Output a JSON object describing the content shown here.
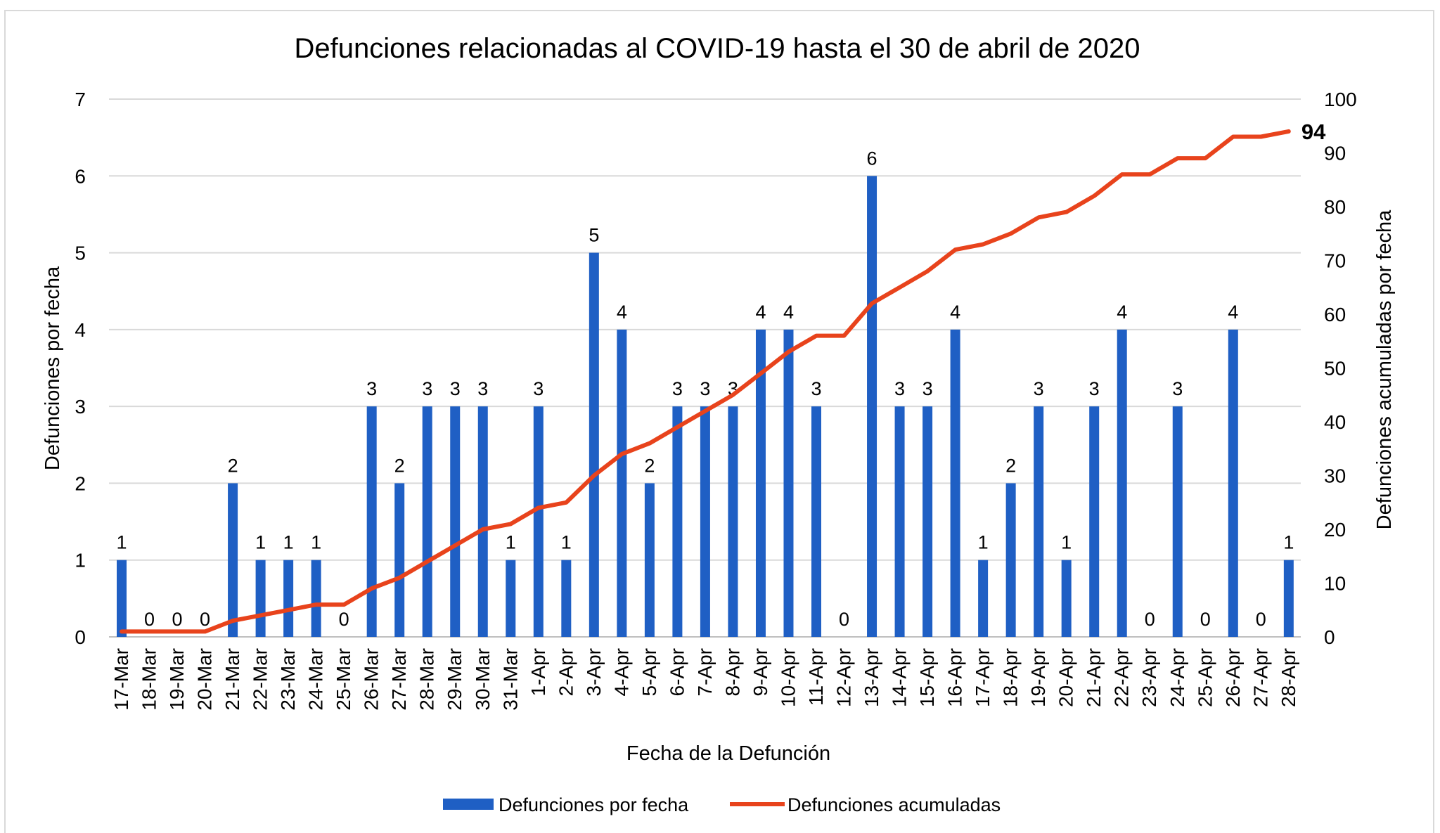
{
  "chart_data": {
    "type": "bar",
    "title": "Defunciones relacionadas al COVID-19 hasta el 30 de abril de 2020",
    "xlabel": "Fecha de la Defunción",
    "ylabel": "Defunciones por fecha",
    "y2label": "Defunciones acumuladas por fecha",
    "ylim": [
      0,
      7
    ],
    "y2lim": [
      0,
      100
    ],
    "yticks": [
      "0",
      "1",
      "2",
      "3",
      "4",
      "5",
      "6",
      "7"
    ],
    "y2ticks": [
      "0",
      "10",
      "20",
      "30",
      "40",
      "50",
      "60",
      "70",
      "80",
      "90",
      "100"
    ],
    "grid": true,
    "legend_position": "bottom",
    "categories": [
      "17-Mar",
      "18-Mar",
      "19-Mar",
      "20-Mar",
      "21-Mar",
      "22-Mar",
      "23-Mar",
      "24-Mar",
      "25-Mar",
      "26-Mar",
      "27-Mar",
      "28-Mar",
      "29-Mar",
      "30-Mar",
      "31-Mar",
      "1-Apr",
      "2-Apr",
      "3-Apr",
      "4-Apr",
      "5-Apr",
      "6-Apr",
      "7-Apr",
      "8-Apr",
      "9-Apr",
      "10-Apr",
      "11-Apr",
      "12-Apr",
      "13-Apr",
      "14-Apr",
      "15-Apr",
      "16-Apr",
      "17-Apr",
      "18-Apr",
      "19-Apr",
      "20-Apr",
      "21-Apr",
      "22-Apr",
      "23-Apr",
      "24-Apr",
      "25-Apr",
      "26-Apr",
      "27-Apr",
      "28-Apr"
    ],
    "series": [
      {
        "name": "Defunciones por fecha",
        "type": "bar",
        "axis": "left",
        "color": "#1f5fc4",
        "values": [
          1,
          0,
          0,
          0,
          2,
          1,
          1,
          1,
          0,
          3,
          2,
          3,
          3,
          3,
          1,
          3,
          1,
          5,
          4,
          2,
          3,
          3,
          3,
          4,
          4,
          3,
          0,
          6,
          3,
          3,
          4,
          1,
          2,
          3,
          1,
          3,
          4,
          0,
          3,
          0,
          4,
          0,
          1
        ]
      },
      {
        "name": "Defunciones acumuladas",
        "type": "line",
        "axis": "right",
        "color": "#e8431c",
        "values": [
          1,
          1,
          1,
          1,
          3,
          4,
          5,
          6,
          6,
          9,
          11,
          14,
          17,
          20,
          21,
          24,
          25,
          30,
          34,
          36,
          39,
          42,
          45,
          49,
          53,
          56,
          56,
          62,
          65,
          68,
          72,
          73,
          75,
          78,
          79,
          82,
          86,
          86,
          89,
          89,
          93,
          93,
          94
        ],
        "end_label": "94"
      }
    ]
  }
}
